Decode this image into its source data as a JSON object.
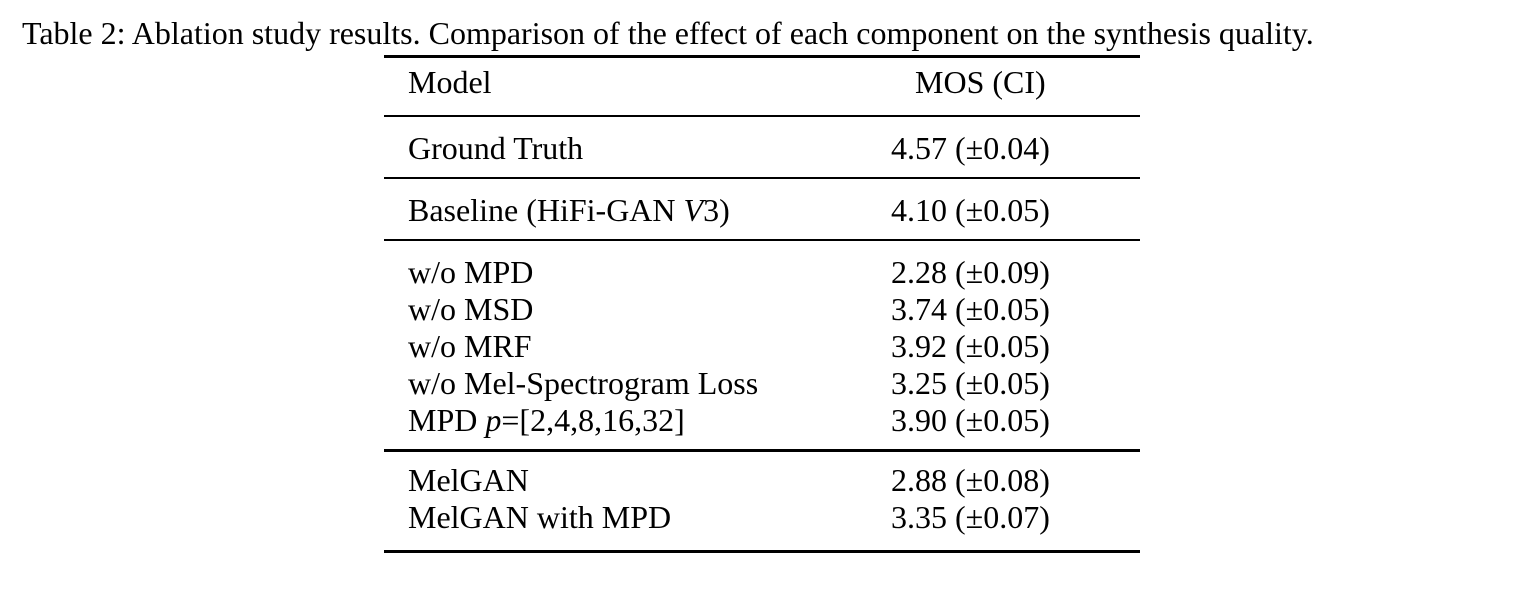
{
  "caption": "Table 2: Ablation study results. Comparison of the effect of each component on the synthesis quality.",
  "table": {
    "headers": [
      "Model",
      "MOS (CI)"
    ],
    "groups": [
      [
        {
          "model": "Ground Truth",
          "mos": "4.57 (±0.04)"
        }
      ],
      [
        {
          "model": "Baseline (HiFi-GAN V3)",
          "mos": "4.10 (±0.05)"
        }
      ],
      [
        {
          "model": "w/o MPD",
          "mos": "2.28 (±0.09)"
        },
        {
          "model": "w/o MSD",
          "mos": "3.74 (±0.05)"
        },
        {
          "model": "w/o MRF",
          "mos": "3.92 (±0.05)"
        },
        {
          "model": "w/o Mel-Spectrogram Loss",
          "mos": "3.25 (±0.05)"
        },
        {
          "model": "MPD p=[2,4,8,16,32]",
          "mos": "3.90 (±0.05)"
        }
      ],
      [
        {
          "model": "MelGAN",
          "mos": "2.88 (±0.08)"
        },
        {
          "model": "MelGAN with MPD",
          "mos": "3.35 (±0.07)"
        }
      ]
    ]
  }
}
